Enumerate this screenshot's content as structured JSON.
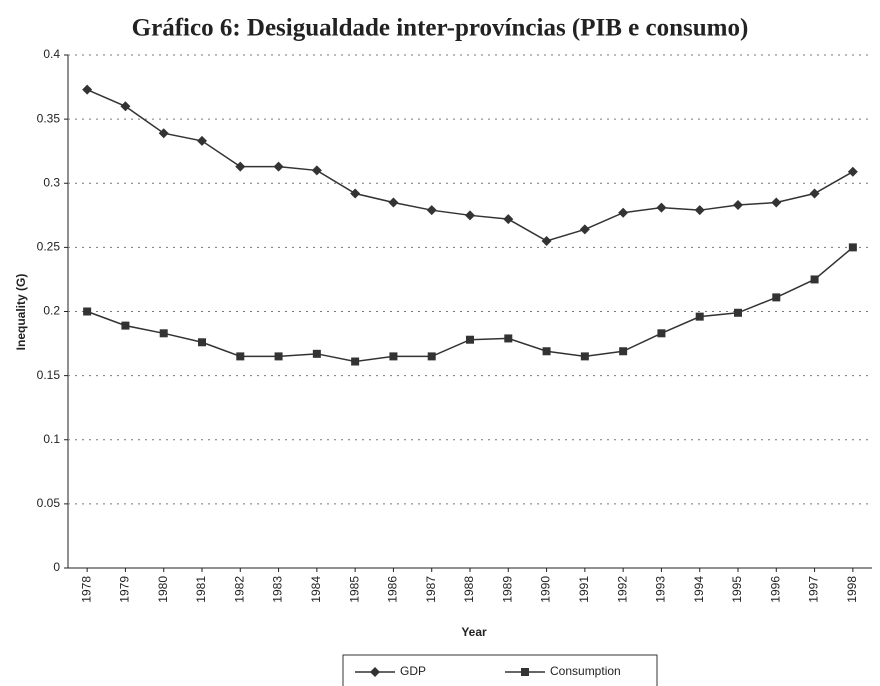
{
  "chart_data": {
    "type": "line",
    "title": "Gráfico 6: Desigualdade inter-províncias (PIB e consumo)",
    "xlabel": "Year",
    "ylabel": "Inequality (G)",
    "categories": [
      "1978",
      "1979",
      "1980",
      "1981",
      "1982",
      "1983",
      "1984",
      "1985",
      "1986",
      "1987",
      "1988",
      "1989",
      "1990",
      "1991",
      "1992",
      "1993",
      "1994",
      "1995",
      "1996",
      "1997",
      "1998"
    ],
    "series": [
      {
        "name": "GDP",
        "color": "#333333",
        "marker": "diamond",
        "values": [
          0.373,
          0.36,
          0.339,
          0.333,
          0.313,
          0.313,
          0.31,
          0.292,
          0.285,
          0.279,
          0.275,
          0.272,
          0.255,
          0.264,
          0.277,
          0.281,
          0.279,
          0.283,
          0.285,
          0.292,
          0.309
        ]
      },
      {
        "name": "Consumption",
        "color": "#333333",
        "marker": "square",
        "values": [
          0.2,
          0.189,
          0.183,
          0.176,
          0.165,
          0.165,
          0.167,
          0.161,
          0.165,
          0.165,
          0.178,
          0.179,
          0.169,
          0.165,
          0.169,
          0.183,
          0.196,
          0.199,
          0.211,
          0.225,
          0.25
        ]
      }
    ],
    "ylim": [
      0,
      0.4
    ],
    "yticks": [
      0,
      0.05,
      0.1,
      0.15,
      0.2,
      0.25,
      0.3,
      0.35,
      0.4
    ],
    "grid": true,
    "legend": "bottom"
  }
}
